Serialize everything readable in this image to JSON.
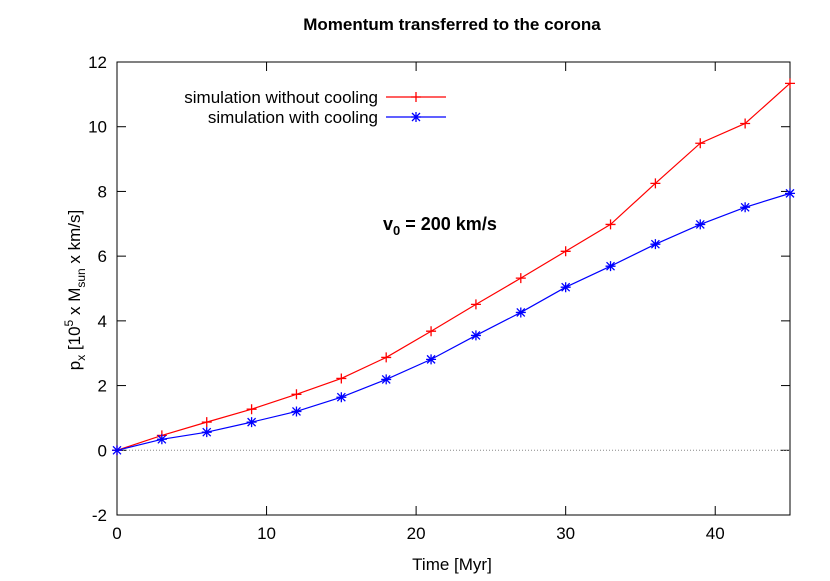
{
  "chart_data": {
    "type": "line",
    "title": "Momentum transferred to the corona",
    "xlabel": "Time [Myr]",
    "ylabel_parts": [
      "p",
      "x",
      " [10",
      "5",
      " x M",
      "sun",
      " x km/s]"
    ],
    "annotation_parts": [
      "v",
      "0",
      " = 200 km/s"
    ],
    "x": [
      0,
      3,
      6,
      9,
      12,
      15,
      18,
      21,
      24,
      27,
      30,
      33,
      36,
      39,
      42,
      45
    ],
    "series": [
      {
        "name": "simulation without cooling",
        "color": "#ff0000",
        "marker": "plus",
        "values": [
          0,
          0.46,
          0.87,
          1.27,
          1.73,
          2.22,
          2.87,
          3.68,
          4.51,
          5.32,
          6.15,
          6.98,
          8.25,
          9.49,
          10.1,
          11.34
        ]
      },
      {
        "name": "simulation with cooling",
        "color": "#0000ff",
        "marker": "star",
        "values": [
          0,
          0.34,
          0.56,
          0.87,
          1.2,
          1.64,
          2.19,
          2.81,
          3.55,
          4.26,
          5.04,
          5.69,
          6.37,
          6.98,
          7.51,
          7.94
        ]
      }
    ],
    "xlim": [
      0,
      45
    ],
    "xticks": [
      0,
      10,
      20,
      30,
      40
    ],
    "ylim": [
      -2,
      12
    ],
    "yticks": [
      -2,
      0,
      2,
      4,
      6,
      8,
      10,
      12
    ],
    "zero_line": true,
    "legend": "top left"
  }
}
